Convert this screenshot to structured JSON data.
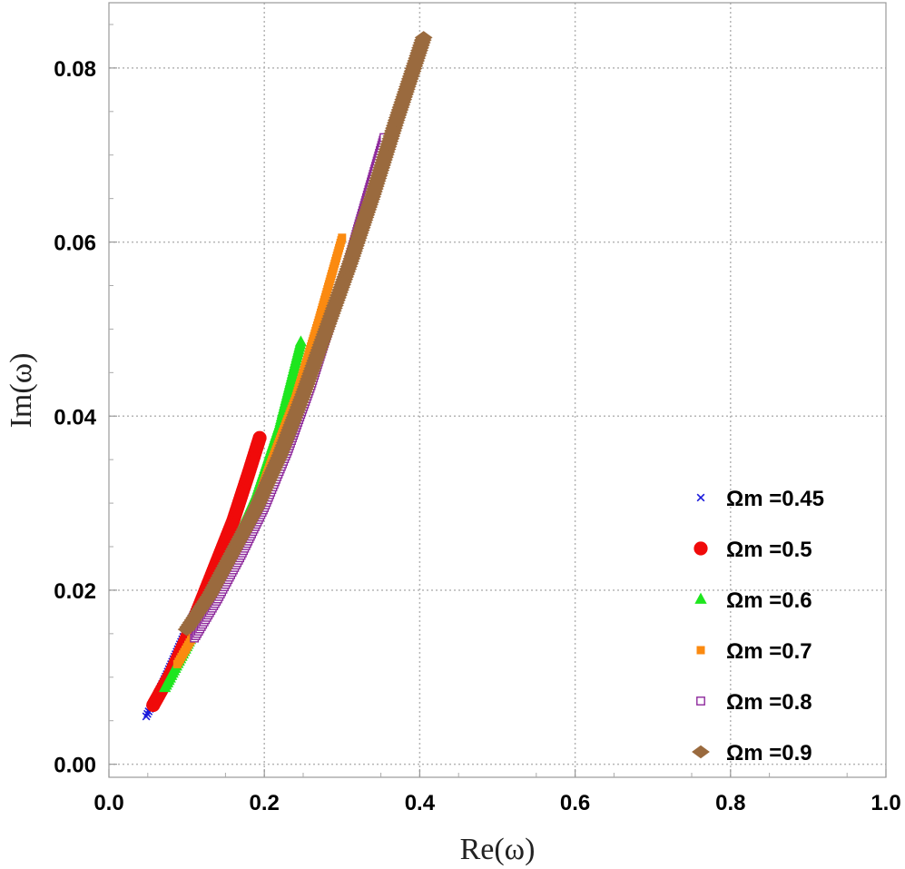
{
  "chart_data": {
    "type": "scatter",
    "xlabel": "Re(ω)",
    "ylabel": "Im(ω)",
    "xlim": [
      0,
      1
    ],
    "ylim": [
      -0.0015,
      0.0875
    ],
    "x_ticks": [
      0.0,
      0.2,
      0.4,
      0.6,
      0.8,
      1.0
    ],
    "x_tick_labels": [
      "0.0",
      "0.2",
      "0.4",
      "0.6",
      "0.8",
      "1.0"
    ],
    "y_ticks": [
      0.0,
      0.02,
      0.04,
      0.06,
      0.08
    ],
    "y_tick_labels": [
      "0.00",
      "0.02",
      "0.04",
      "0.06",
      "0.08"
    ],
    "grid": true,
    "legend_position": "right-bottom",
    "series": [
      {
        "name": "Ωm =0.45",
        "marker": "x",
        "color": "#1a1adb",
        "points": [
          [
            0.048,
            0.0055
          ],
          [
            0.07,
            0.0095
          ],
          [
            0.09,
            0.0135
          ],
          [
            0.11,
            0.0175
          ],
          [
            0.13,
            0.0215
          ],
          [
            0.15,
            0.026
          ],
          [
            0.17,
            0.031
          ]
        ]
      },
      {
        "name": "Ωm =0.5",
        "marker": "circle",
        "color": "#f00a0a",
        "points": [
          [
            0.057,
            0.0068
          ],
          [
            0.08,
            0.0105
          ],
          [
            0.1,
            0.0145
          ],
          [
            0.12,
            0.019
          ],
          [
            0.14,
            0.0235
          ],
          [
            0.16,
            0.028
          ],
          [
            0.18,
            0.0335
          ],
          [
            0.194,
            0.0375
          ]
        ]
      },
      {
        "name": "Ωm =0.6",
        "marker": "triangle",
        "color": "#1ee61e",
        "points": [
          [
            0.072,
            0.0088
          ],
          [
            0.1,
            0.0135
          ],
          [
            0.13,
            0.019
          ],
          [
            0.16,
            0.025
          ],
          [
            0.19,
            0.031
          ],
          [
            0.22,
            0.039
          ],
          [
            0.247,
            0.0485
          ]
        ]
      },
      {
        "name": "Ωm =0.7",
        "marker": "square",
        "color": "#fb8a10",
        "points": [
          [
            0.088,
            0.0115
          ],
          [
            0.12,
            0.0165
          ],
          [
            0.15,
            0.022
          ],
          [
            0.18,
            0.0275
          ],
          [
            0.21,
            0.035
          ],
          [
            0.24,
            0.042
          ],
          [
            0.27,
            0.051
          ],
          [
            0.3,
            0.0605
          ]
        ]
      },
      {
        "name": "Ωm =0.8",
        "marker": "open-square",
        "color": "#8e2a9c",
        "points": [
          [
            0.11,
            0.0145
          ],
          [
            0.14,
            0.019
          ],
          [
            0.17,
            0.024
          ],
          [
            0.2,
            0.0295
          ],
          [
            0.23,
            0.036
          ],
          [
            0.26,
            0.0435
          ],
          [
            0.29,
            0.052
          ],
          [
            0.32,
            0.0615
          ],
          [
            0.354,
            0.072
          ]
        ]
      },
      {
        "name": "Ωm =0.9",
        "marker": "diamond",
        "color": "#9a6a3e",
        "points": [
          [
            0.1,
            0.0155
          ],
          [
            0.13,
            0.0195
          ],
          [
            0.16,
            0.0245
          ],
          [
            0.19,
            0.0295
          ],
          [
            0.22,
            0.0355
          ],
          [
            0.25,
            0.0425
          ],
          [
            0.28,
            0.05
          ],
          [
            0.31,
            0.0575
          ],
          [
            0.34,
            0.0655
          ],
          [
            0.37,
            0.074
          ],
          [
            0.405,
            0.0835
          ]
        ]
      }
    ]
  }
}
